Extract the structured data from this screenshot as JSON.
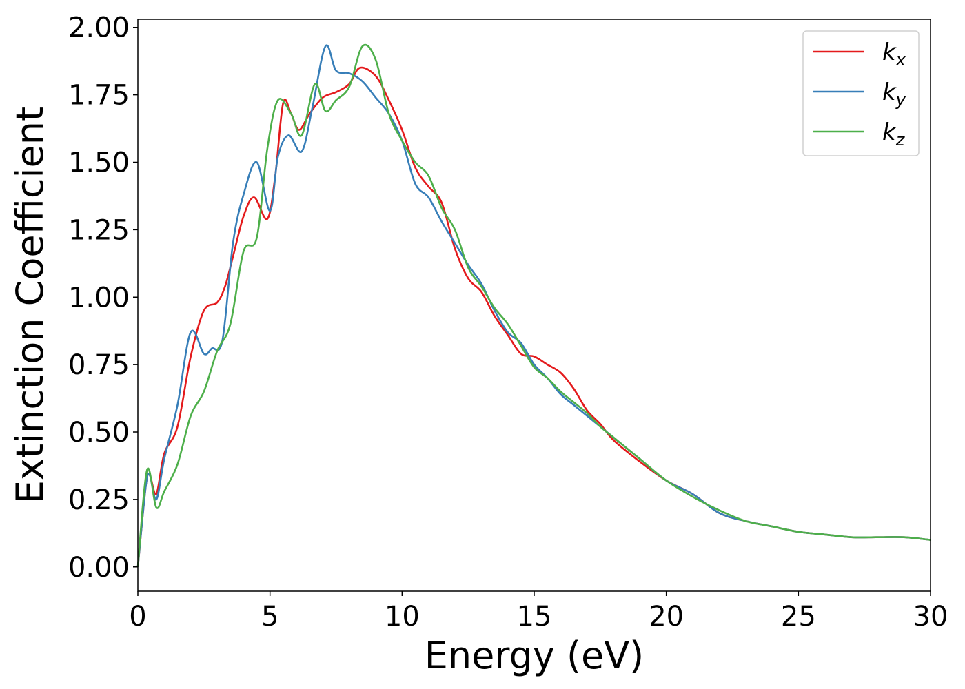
{
  "chart_data": {
    "type": "line",
    "xlabel": "Energy (eV)",
    "ylabel": "Extinction Coefficient",
    "xlim": [
      0,
      30
    ],
    "ylim": [
      -0.09,
      2.03
    ],
    "xticks": [
      "0",
      "5",
      "10",
      "15",
      "20",
      "25",
      "30"
    ],
    "yticks": [
      "0.00",
      "0.25",
      "0.50",
      "0.75",
      "1.00",
      "1.25",
      "1.50",
      "1.75",
      "2.00"
    ],
    "grid": false,
    "legend_position": "top-right",
    "series": [
      {
        "name": "k",
        "subscript": "x",
        "color": "#e41a1c",
        "x": [
          0,
          0.3,
          0.45,
          0.7,
          1.0,
          1.5,
          2.0,
          2.5,
          3.0,
          3.3,
          3.6,
          4.0,
          4.4,
          4.9,
          5.2,
          5.5,
          5.8,
          6.1,
          6.5,
          7.0,
          7.5,
          8.0,
          8.4,
          9.0,
          9.5,
          10.0,
          10.5,
          11.0,
          11.5,
          12.0,
          12.5,
          13.0,
          13.5,
          14.0,
          14.5,
          15.0,
          15.5,
          16.0,
          16.5,
          17.0,
          17.5,
          18.0,
          19.0,
          20.0,
          21.0,
          22.0,
          23.0,
          24.0,
          25.0,
          26.0,
          27.0,
          28.0,
          29.0,
          30.0
        ],
        "y": [
          0.0,
          0.3,
          0.34,
          0.27,
          0.42,
          0.52,
          0.78,
          0.95,
          0.98,
          1.04,
          1.15,
          1.3,
          1.37,
          1.29,
          1.45,
          1.72,
          1.68,
          1.62,
          1.68,
          1.74,
          1.76,
          1.79,
          1.85,
          1.82,
          1.73,
          1.62,
          1.48,
          1.41,
          1.35,
          1.18,
          1.07,
          1.02,
          0.93,
          0.86,
          0.79,
          0.78,
          0.75,
          0.72,
          0.66,
          0.58,
          0.53,
          0.47,
          0.39,
          0.32,
          0.27,
          0.2,
          0.17,
          0.15,
          0.13,
          0.12,
          0.11,
          0.11,
          0.11,
          0.1
        ]
      },
      {
        "name": "k",
        "subscript": "y",
        "color": "#377eb8",
        "x": [
          0,
          0.3,
          0.45,
          0.7,
          1.0,
          1.5,
          2.0,
          2.5,
          2.8,
          3.2,
          3.6,
          4.0,
          4.5,
          5.0,
          5.3,
          5.7,
          6.2,
          6.6,
          7.1,
          7.5,
          8.0,
          8.5,
          9.0,
          9.5,
          10.0,
          10.5,
          11.0,
          11.5,
          12.0,
          12.5,
          13.0,
          13.5,
          14.0,
          14.5,
          15.0,
          15.5,
          16.0,
          16.5,
          17.0,
          17.5,
          18.0,
          19.0,
          20.0,
          21.0,
          22.0,
          23.0,
          24.0,
          25.0,
          26.0,
          27.0,
          28.0,
          29.0,
          30.0
        ],
        "y": [
          0.0,
          0.3,
          0.34,
          0.25,
          0.4,
          0.6,
          0.87,
          0.79,
          0.81,
          0.84,
          1.2,
          1.38,
          1.5,
          1.32,
          1.52,
          1.6,
          1.54,
          1.7,
          1.93,
          1.84,
          1.83,
          1.8,
          1.74,
          1.68,
          1.58,
          1.42,
          1.37,
          1.28,
          1.2,
          1.12,
          1.05,
          0.95,
          0.87,
          0.83,
          0.75,
          0.7,
          0.64,
          0.6,
          0.56,
          0.52,
          0.48,
          0.4,
          0.32,
          0.27,
          0.2,
          0.17,
          0.15,
          0.13,
          0.12,
          0.11,
          0.11,
          0.11,
          0.1
        ]
      },
      {
        "name": "k",
        "subscript": "z",
        "color": "#4daf4a",
        "x": [
          0,
          0.35,
          0.7,
          1.0,
          1.5,
          2.0,
          2.5,
          3.0,
          3.5,
          4.0,
          4.5,
          4.9,
          5.3,
          5.8,
          6.2,
          6.7,
          7.1,
          7.5,
          8.0,
          8.5,
          9.0,
          9.5,
          10.0,
          10.5,
          11.0,
          11.5,
          12.0,
          12.5,
          13.0,
          13.5,
          14.0,
          14.5,
          15.0,
          15.5,
          16.0,
          16.5,
          17.0,
          17.5,
          18.0,
          19.0,
          20.0,
          21.0,
          22.0,
          23.0,
          24.0,
          25.0,
          26.0,
          27.0,
          28.0,
          29.0,
          30.0
        ],
        "y": [
          0.0,
          0.36,
          0.22,
          0.28,
          0.38,
          0.56,
          0.65,
          0.8,
          0.9,
          1.17,
          1.22,
          1.55,
          1.73,
          1.68,
          1.6,
          1.79,
          1.69,
          1.73,
          1.78,
          1.93,
          1.88,
          1.68,
          1.58,
          1.5,
          1.45,
          1.33,
          1.25,
          1.11,
          1.04,
          0.96,
          0.9,
          0.82,
          0.74,
          0.7,
          0.65,
          0.61,
          0.57,
          0.52,
          0.48,
          0.4,
          0.32,
          0.26,
          0.21,
          0.17,
          0.15,
          0.13,
          0.12,
          0.11,
          0.11,
          0.11,
          0.1
        ]
      }
    ]
  }
}
